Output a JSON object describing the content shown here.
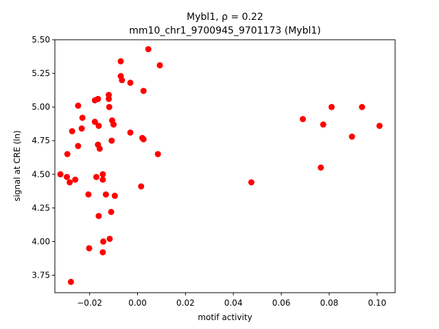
{
  "chart_data": {
    "type": "scatter",
    "title": "Mybl1, ρ = 0.22",
    "subtitle": "mm10_chr1_9700945_9701173 (Mybl1)",
    "xlabel": "motif activity",
    "ylabel": "signal at CRE (ln)",
    "xlim": [
      -0.0345,
      0.1075
    ],
    "ylim": [
      3.62,
      5.5
    ],
    "xticks": [
      -0.02,
      0.0,
      0.02,
      0.04,
      0.06,
      0.08,
      0.1
    ],
    "xtick_labels": [
      "−0.02",
      "0.00",
      "0.02",
      "0.04",
      "0.06",
      "0.08",
      "0.10"
    ],
    "yticks": [
      3.75,
      4.0,
      4.25,
      4.5,
      4.75,
      5.0,
      5.25,
      5.5
    ],
    "ytick_labels": [
      "3.75",
      "4.00",
      "4.25",
      "4.50",
      "4.75",
      "5.00",
      "5.25",
      "5.50"
    ],
    "grid": false,
    "marker_color": "#ff0000",
    "series": [
      {
        "points": [
          [
            -0.0322,
            4.5
          ],
          [
            -0.0295,
            4.48
          ],
          [
            -0.0293,
            4.65
          ],
          [
            -0.0283,
            4.44
          ],
          [
            -0.0278,
            3.7
          ],
          [
            -0.0273,
            4.82
          ],
          [
            -0.026,
            4.46
          ],
          [
            -0.0248,
            5.01
          ],
          [
            -0.0248,
            4.71
          ],
          [
            -0.0233,
            4.84
          ],
          [
            -0.023,
            4.92
          ],
          [
            -0.0205,
            4.35
          ],
          [
            -0.0202,
            3.95
          ],
          [
            -0.0178,
            4.89
          ],
          [
            -0.0178,
            5.05
          ],
          [
            -0.0172,
            4.48
          ],
          [
            -0.0165,
            5.06
          ],
          [
            -0.0165,
            4.72
          ],
          [
            -0.0162,
            4.86
          ],
          [
            -0.0162,
            4.19
          ],
          [
            -0.0158,
            4.69
          ],
          [
            -0.0145,
            4.5
          ],
          [
            -0.0145,
            4.46
          ],
          [
            -0.0143,
            4.0
          ],
          [
            -0.0145,
            3.92
          ],
          [
            -0.0132,
            4.35
          ],
          [
            -0.012,
            5.09
          ],
          [
            -0.012,
            5.06
          ],
          [
            -0.0118,
            5.0
          ],
          [
            -0.0116,
            4.02
          ],
          [
            -0.011,
            4.22
          ],
          [
            -0.0108,
            4.75
          ],
          [
            -0.0106,
            4.9
          ],
          [
            -0.01,
            4.87
          ],
          [
            -0.0095,
            4.34
          ],
          [
            -0.007,
            5.34
          ],
          [
            -0.007,
            5.23
          ],
          [
            -0.0065,
            5.2
          ],
          [
            -0.003,
            4.81
          ],
          [
            -0.003,
            5.18
          ],
          [
            0.0015,
            4.41
          ],
          [
            0.002,
            4.77
          ],
          [
            0.0025,
            5.12
          ],
          [
            0.0025,
            4.76
          ],
          [
            0.0045,
            5.43
          ],
          [
            0.0085,
            4.65
          ],
          [
            0.0093,
            5.31
          ],
          [
            0.0475,
            4.44
          ],
          [
            0.069,
            4.91
          ],
          [
            0.0765,
            4.55
          ],
          [
            0.0775,
            4.87
          ],
          [
            0.081,
            5.0
          ],
          [
            0.0895,
            4.78
          ],
          [
            0.0937,
            5.0
          ],
          [
            0.101,
            4.86
          ]
        ]
      }
    ]
  }
}
